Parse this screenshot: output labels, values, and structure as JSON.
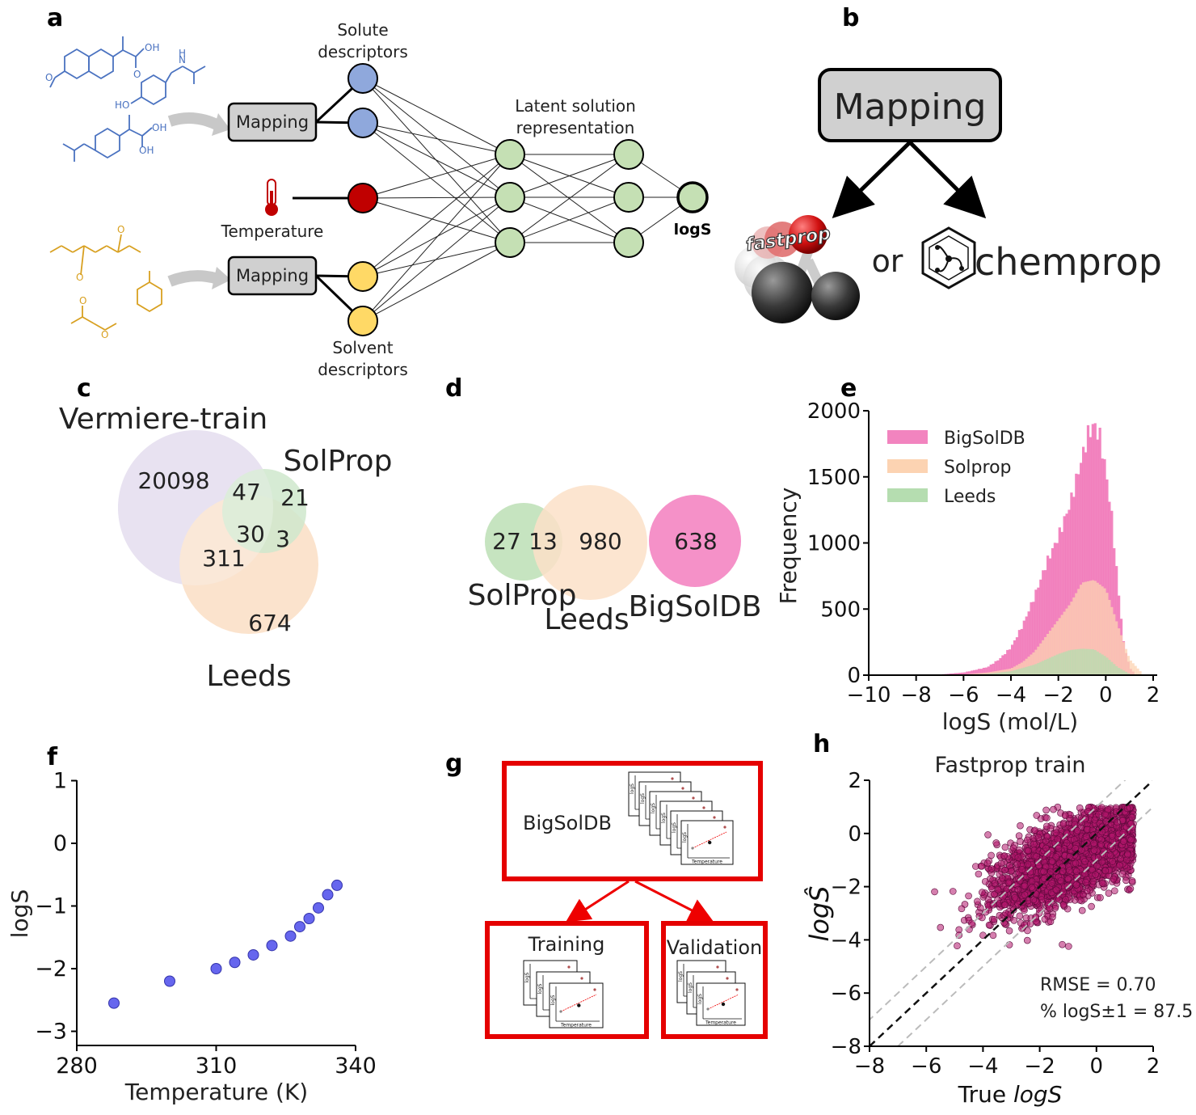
{
  "panels": {
    "a": {
      "letter": "a",
      "solute_descriptors_line1": "Solute",
      "solute_descriptors_line2": "descriptors",
      "solvent_descriptors_line1": "Solvent",
      "solvent_descriptors_line2": "descriptors",
      "mapping_label": "Mapping",
      "temperature_label": "Temperature",
      "latent_line1": "Latent solution",
      "latent_line2": "representation",
      "output_label": "logS",
      "colors": {
        "solute": "#8fa8dc",
        "temperature": "#c00000",
        "solvent": "#ffd966",
        "hidden": "#c5e0b4",
        "mapping_box": "#d0d0d0"
      }
    },
    "b": {
      "letter": "b",
      "mapping_label": "Mapping",
      "fastprop_label": "fastprop",
      "or_label": "or",
      "chemprop_label": "chemprop"
    },
    "c": {
      "letter": "c",
      "sets": [
        "Vermiere-train",
        "SolProp",
        "Leeds"
      ],
      "counts": {
        "v_only": "20098",
        "v_s": "47",
        "s_only": "21",
        "all": "30",
        "s_l": "3",
        "v_l": "311",
        "l_only": "674"
      },
      "colors": {
        "vermiere": "#e0d9ec",
        "solprop": "#cfe8cc",
        "leeds": "#fbe0c8"
      }
    },
    "d": {
      "letter": "d",
      "sets": [
        "SolProp",
        "Leeds",
        "BigSolDB"
      ],
      "counts": {
        "s_only": "27",
        "s_l": "13",
        "l_only": "980",
        "big": "638"
      },
      "colors": {
        "solprop": "#c6e4c0",
        "leeds": "#fbe0c8",
        "bigsoldb": "#f591c8"
      }
    },
    "e": {
      "letter": "e",
      "xlabel": "logS (mol/L)",
      "ylabel": "Frequency",
      "xticks": [
        "−10",
        "−8",
        "−6",
        "−4",
        "−2",
        "0",
        "2"
      ],
      "yticks": [
        "0",
        "500",
        "1000",
        "1500",
        "2000"
      ],
      "legend": [
        "BigSolDB",
        "Solprop",
        "Leeds"
      ]
    },
    "f": {
      "letter": "f",
      "xlabel": "Temperature (K)",
      "ylabel": "logS",
      "xticks": [
        "280",
        "310",
        "340"
      ],
      "yticks": [
        "1",
        "0",
        "−1",
        "−2",
        "−3"
      ]
    },
    "g": {
      "letter": "g",
      "top_label": "BigSolDB",
      "left_label": "Training",
      "right_label": "Validation",
      "mini_axis_x": "Temperature",
      "mini_axis_y": "logS"
    },
    "h": {
      "letter": "h",
      "title": "Fastprop train",
      "xlabel_prefix": "True ",
      "xlabel_italic": "logS",
      "ylabel": "logŜ",
      "xticks": [
        "−8",
        "−6",
        "−4",
        "−2",
        "0",
        "2"
      ],
      "yticks": [
        "2",
        "0",
        "−2",
        "−4",
        "−6",
        "−8"
      ],
      "rmse": "RMSE = 0.70",
      "pct": "% logS±1 = 87.5"
    }
  },
  "chart_data": [
    {
      "panel": "e",
      "type": "area",
      "x_range": [
        -10,
        2
      ],
      "ylim": [
        0,
        2000
      ],
      "series": [
        {
          "name": "BigSolDB",
          "color": "#f06eb4",
          "x": [
            -7,
            -6,
            -5,
            -4.5,
            -4,
            -3.5,
            -3,
            -2.5,
            -2,
            -1.5,
            -1,
            -0.75,
            -0.5,
            -0.25,
            0,
            0.25,
            0.5,
            0.75,
            1,
            1.25
          ],
          "values": [
            5,
            20,
            60,
            120,
            210,
            380,
            600,
            850,
            1050,
            1300,
            1650,
            1820,
            1900,
            1800,
            1550,
            1200,
            700,
            250,
            60,
            5
          ]
        },
        {
          "name": "Solprop",
          "color": "#fcd3b2",
          "x": [
            -6,
            -5,
            -4,
            -3.5,
            -3,
            -2.5,
            -2,
            -1.5,
            -1,
            -0.5,
            0,
            0.5,
            1,
            1.5
          ],
          "values": [
            5,
            20,
            50,
            100,
            180,
            300,
            420,
            540,
            700,
            720,
            650,
            380,
            120,
            20
          ]
        },
        {
          "name": "Leeds",
          "color": "#b5ddb0",
          "x": [
            -6,
            -5,
            -4,
            -3,
            -2.5,
            -2,
            -1.5,
            -1,
            -0.5,
            0,
            0.5,
            1
          ],
          "values": [
            3,
            10,
            30,
            80,
            120,
            160,
            190,
            200,
            195,
            140,
            60,
            10
          ]
        }
      ]
    },
    {
      "panel": "f",
      "type": "scatter",
      "xlim": [
        280,
        340
      ],
      "ylim": [
        -3.2,
        1
      ],
      "x": [
        288,
        300,
        310,
        314,
        318,
        322,
        326,
        328,
        330,
        332,
        334,
        336
      ],
      "y": [
        -2.55,
        -2.2,
        -2.0,
        -1.9,
        -1.78,
        -1.63,
        -1.48,
        -1.33,
        -1.2,
        -1.03,
        -0.82,
        -0.67
      ],
      "color": "#6666ee"
    },
    {
      "panel": "h",
      "type": "scatter",
      "xlim": [
        -8,
        2
      ],
      "ylim": [
        -8,
        2
      ],
      "reference_lines": [
        "y=x",
        "y=x+1",
        "y=x-1"
      ],
      "point_color": "#b3166c",
      "cloud_envelope": {
        "x_min": -7,
        "x_max": 1.3
      }
    }
  ]
}
